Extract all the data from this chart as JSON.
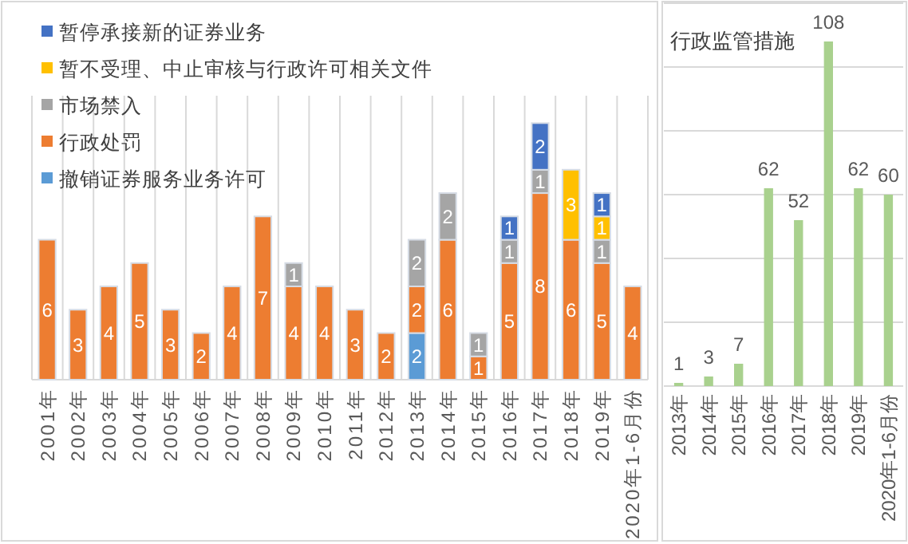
{
  "chart_data": [
    {
      "type": "bar",
      "stacked": true,
      "categories": [
        "2001年",
        "2002年",
        "2003年",
        "2004年",
        "2005年",
        "2006年",
        "2007年",
        "2008年",
        "2009年",
        "2010年",
        "2011年",
        "2012年",
        "2013年",
        "2014年",
        "2015年",
        "2016年",
        "2017年",
        "2018年",
        "2019年",
        "2020年1-6月份"
      ],
      "series": [
        {
          "name": "撤销证券服务业务许可",
          "color": "#5b9bd5",
          "values": [
            null,
            null,
            null,
            null,
            null,
            null,
            null,
            null,
            null,
            null,
            null,
            null,
            2,
            null,
            null,
            null,
            null,
            null,
            null,
            null
          ]
        },
        {
          "name": "行政处罚",
          "color": "#ed7d31",
          "values": [
            6,
            3,
            4,
            5,
            3,
            2,
            4,
            7,
            4,
            4,
            3,
            2,
            2,
            6,
            1,
            5,
            8,
            6,
            5,
            4
          ]
        },
        {
          "name": "市场禁入",
          "color": "#a5a5a5",
          "values": [
            null,
            null,
            null,
            null,
            null,
            null,
            null,
            null,
            1,
            null,
            null,
            null,
            2,
            2,
            1,
            1,
            1,
            null,
            1,
            null
          ]
        },
        {
          "name": "暂不受理、中止审核与行政许可相关文件",
          "color": "#ffc000",
          "values": [
            null,
            null,
            null,
            null,
            null,
            null,
            null,
            null,
            null,
            null,
            null,
            null,
            null,
            null,
            null,
            null,
            null,
            3,
            1,
            null
          ]
        },
        {
          "name": "暂停承接新的证券业务",
          "color": "#4472c4",
          "values": [
            null,
            null,
            null,
            null,
            null,
            null,
            null,
            null,
            null,
            null,
            null,
            null,
            null,
            null,
            null,
            1,
            2,
            null,
            1,
            null
          ]
        }
      ],
      "data_labels": true,
      "legend": "top left",
      "grid": "x",
      "tick_labels": "x"
    },
    {
      "type": "bar",
      "title": "行政监管措施",
      "categories": [
        "2013年",
        "2014年",
        "2015年",
        "2016年",
        "2017年",
        "2018年",
        "2019年",
        "2020年1-6月份"
      ],
      "values": [
        1,
        3,
        7,
        62,
        52,
        108,
        62,
        60
      ],
      "color": "#a9d18e",
      "ylim": [
        0,
        120
      ],
      "yticks": [
        {
          "value": 0,
          "label": null
        },
        {
          "value": 20,
          "label": null
        },
        {
          "value": 40,
          "label": null
        },
        {
          "value": 60,
          "label": null
        },
        {
          "value": 80,
          "label": null
        },
        {
          "value": 100,
          "label": null
        },
        {
          "value": 120,
          "label": null
        }
      ],
      "data_labels": true,
      "grid": "y",
      "tick_labels": "x"
    }
  ]
}
